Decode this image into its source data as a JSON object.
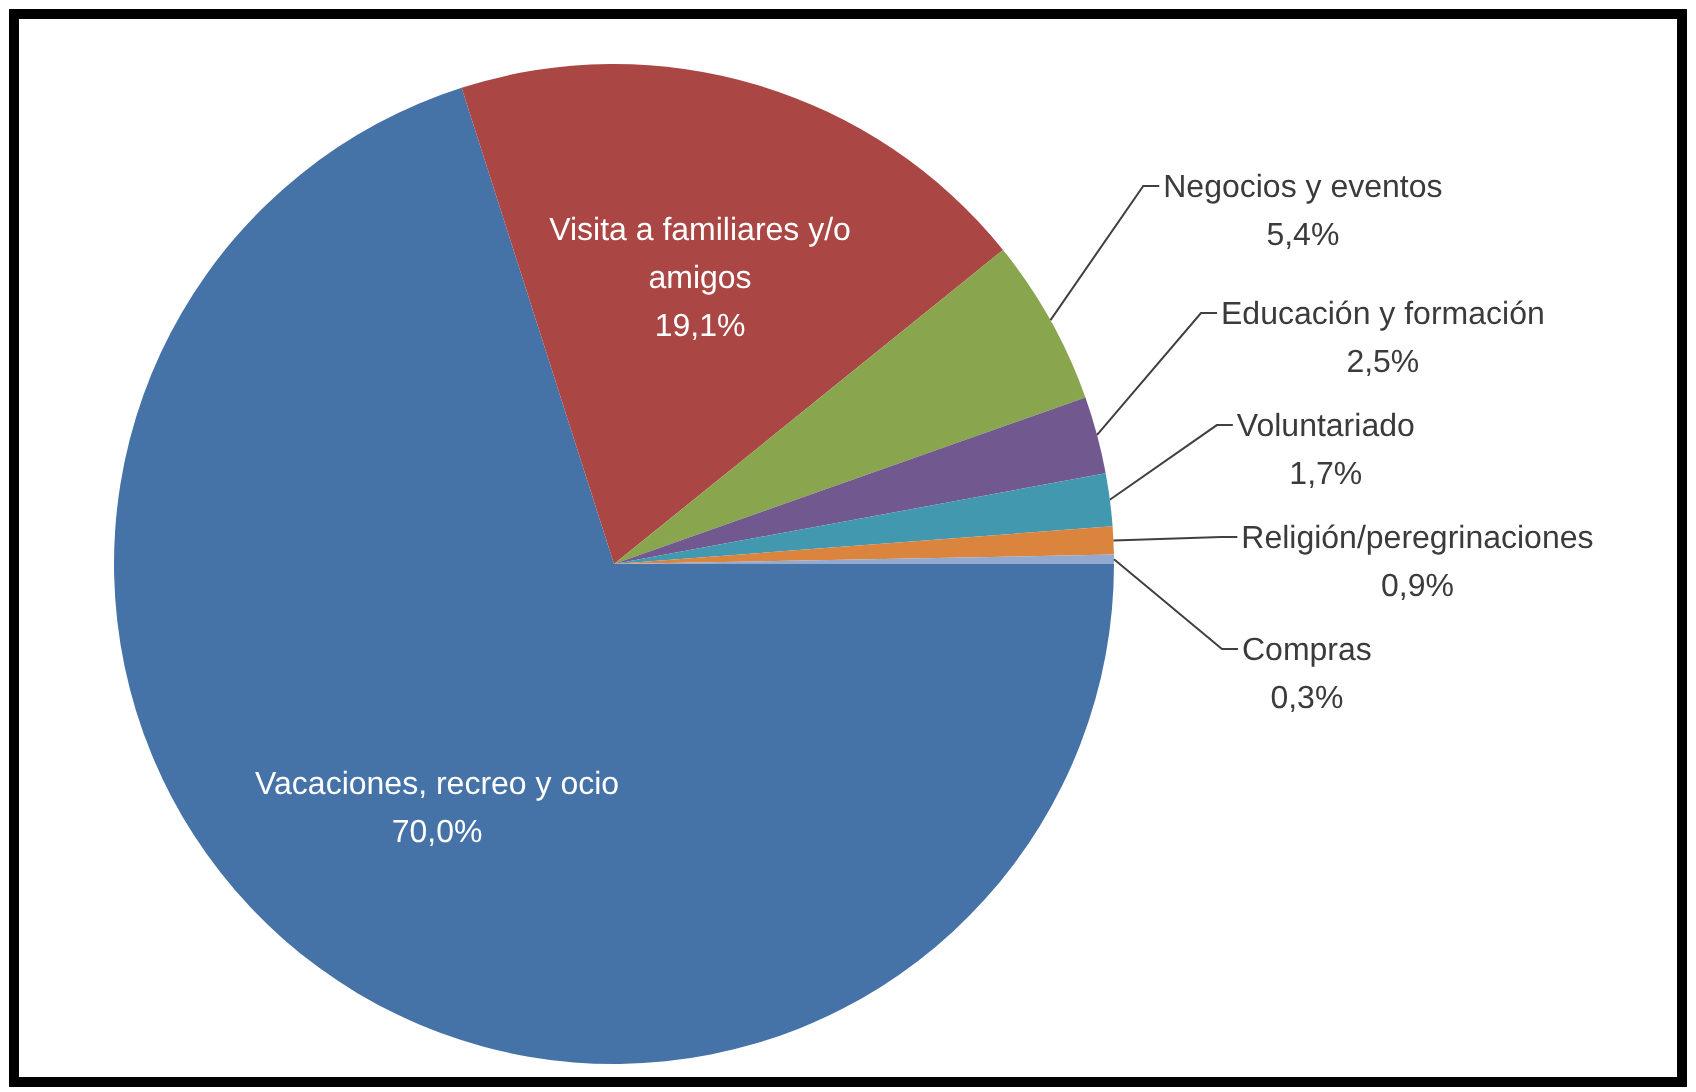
{
  "chart_data": {
    "type": "pie",
    "categories": [
      "Vacaciones, recreo y ocio",
      "Visita a familiares y/o amigos",
      "Negocios y eventos",
      "Educación y formación",
      "Voluntariado",
      "Religión/peregrinaciones",
      "Compras"
    ],
    "values": [
      70.0,
      19.1,
      5.4,
      2.5,
      1.7,
      0.9,
      0.3
    ],
    "colors": [
      "#4572a7",
      "#aa4643",
      "#89a54e",
      "#71588f",
      "#4198af",
      "#db843d",
      "#93a9cf"
    ],
    "value_labels": [
      "70,0%",
      "19,1%",
      "5,4%",
      "2,5%",
      "1,7%",
      "0,9%",
      "0,3%"
    ]
  }
}
